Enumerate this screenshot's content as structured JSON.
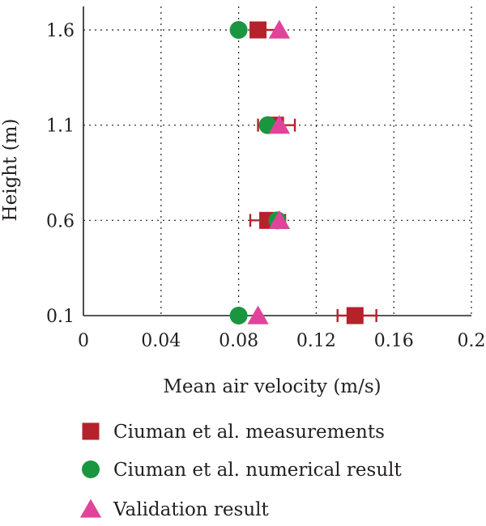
{
  "chart_data": {
    "type": "scatter",
    "title": "",
    "xlabel": "Mean air velocity (m/s)",
    "ylabel": "Height (m)",
    "xlim": [
      0,
      0.2
    ],
    "xticks": [
      0,
      0.04,
      0.08,
      0.12,
      0.16,
      0.2
    ],
    "xtick_labels": [
      "0",
      "0.04",
      "0.08",
      "0.12",
      "0.16",
      "0.2"
    ],
    "yticks": [
      0.1,
      0.6,
      1.1,
      1.6
    ],
    "ytick_labels": [
      "0.1",
      "0.6",
      "1.1",
      "1.6"
    ],
    "grid": true,
    "legend_position": "bottom",
    "series": [
      {
        "name": "Ciuman et al. measurements",
        "marker": "square",
        "color": "#b5222b",
        "points": [
          {
            "x": 0.14,
            "y": 0.1,
            "xerr_low": 0.131,
            "xerr_high": 0.151
          },
          {
            "x": 0.095,
            "y": 0.6,
            "xerr_low": 0.086,
            "xerr_high": 0.104
          },
          {
            "x": 0.099,
            "y": 1.1,
            "xerr_low": 0.09,
            "xerr_high": 0.109
          },
          {
            "x": 0.09,
            "y": 1.6,
            "xerr_low": 0.088,
            "xerr_high": 0.101
          }
        ]
      },
      {
        "name": "Ciuman et al. numerical result",
        "marker": "circle",
        "color": "#1a9641",
        "points": [
          {
            "x": 0.08,
            "y": 0.1
          },
          {
            "x": 0.1,
            "y": 0.6
          },
          {
            "x": 0.095,
            "y": 1.1
          },
          {
            "x": 0.08,
            "y": 1.6
          }
        ]
      },
      {
        "name": "Validation result",
        "marker": "triangle",
        "color": "#e0449a",
        "points": [
          {
            "x": 0.09,
            "y": 0.1
          },
          {
            "x": 0.101,
            "y": 0.6
          },
          {
            "x": 0.101,
            "y": 1.1
          },
          {
            "x": 0.101,
            "y": 1.6
          }
        ]
      }
    ]
  }
}
